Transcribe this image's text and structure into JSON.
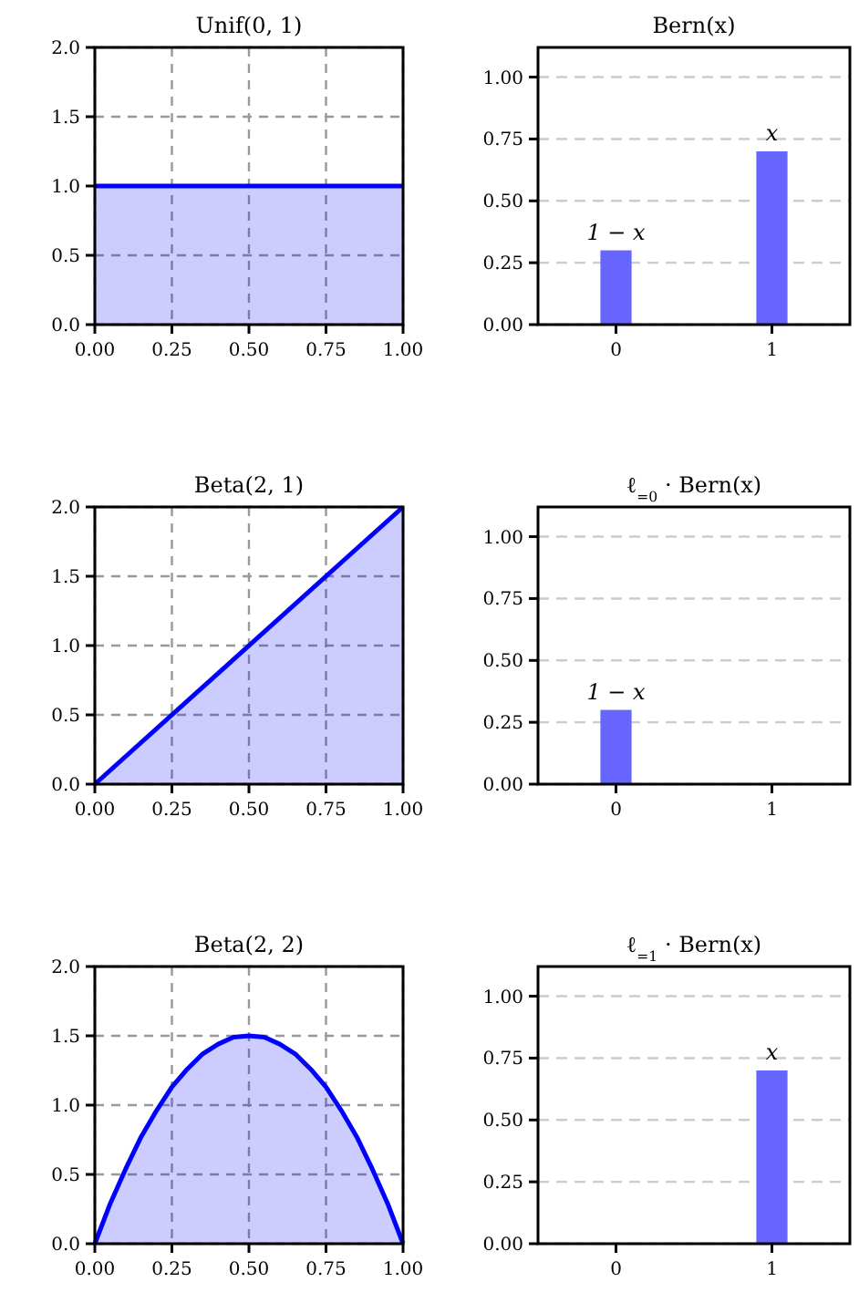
{
  "chart_data": [
    {
      "type": "area",
      "title": "Unif(0, 1)",
      "x": [
        0,
        1
      ],
      "series": [
        {
          "color": "#0000ff",
          "values": [
            1,
            1
          ]
        }
      ],
      "xlim": [
        0,
        1
      ],
      "ylim": [
        0,
        2
      ],
      "xticks": [
        {
          "value": 0,
          "label": "0.00"
        },
        {
          "value": 0.25,
          "label": "0.25"
        },
        {
          "value": 0.5,
          "label": "0.50"
        },
        {
          "value": 0.75,
          "label": "0.75"
        },
        {
          "value": 1,
          "label": "1.00"
        }
      ],
      "yticks": [
        {
          "value": 0,
          "label": "0.0"
        },
        {
          "value": 0.5,
          "label": "0.5"
        },
        {
          "value": 1,
          "label": "1.0"
        },
        {
          "value": 1.5,
          "label": "1.5"
        },
        {
          "value": 2,
          "label": "2.0"
        }
      ],
      "grid": true
    },
    {
      "type": "bar",
      "title": "Bern(x)",
      "categories": [
        "0",
        "1"
      ],
      "values": [
        0.3,
        0.7
      ],
      "annotations": [
        {
          "text": "1 − x",
          "x": "0",
          "y": 0.3
        },
        {
          "text": "x",
          "x": "1",
          "y": 0.7
        }
      ],
      "color": "#6666ff",
      "ylim": [
        0,
        1.12
      ],
      "yticks": [
        {
          "value": 0,
          "label": "0.00"
        },
        {
          "value": 0.25,
          "label": "0.25"
        },
        {
          "value": 0.5,
          "label": "0.50"
        },
        {
          "value": 0.75,
          "label": "0.75"
        },
        {
          "value": 1,
          "label": "1.00"
        }
      ],
      "grid": "y"
    },
    {
      "type": "area",
      "title": "Beta(2, 1)",
      "x": [
        0,
        1
      ],
      "series": [
        {
          "color": "#0000ff",
          "values": [
            0,
            2
          ]
        }
      ],
      "xlim": [
        0,
        1
      ],
      "ylim": [
        0,
        2
      ],
      "xticks": [
        {
          "value": 0,
          "label": "0.00"
        },
        {
          "value": 0.25,
          "label": "0.25"
        },
        {
          "value": 0.5,
          "label": "0.50"
        },
        {
          "value": 0.75,
          "label": "0.75"
        },
        {
          "value": 1,
          "label": "1.00"
        }
      ],
      "yticks": [
        {
          "value": 0,
          "label": "0.0"
        },
        {
          "value": 0.5,
          "label": "0.5"
        },
        {
          "value": 1,
          "label": "1.0"
        },
        {
          "value": 1.5,
          "label": "1.5"
        },
        {
          "value": 2,
          "label": "2.0"
        }
      ],
      "grid": true
    },
    {
      "type": "bar",
      "title": "ℓ$_{=0}$ · Bern(x)",
      "categories": [
        "0",
        "1"
      ],
      "values": [
        0.3,
        null
      ],
      "annotations": [
        {
          "text": "1 − x",
          "x": "0",
          "y": 0.3
        }
      ],
      "color": "#6666ff",
      "ylim": [
        0,
        1.12
      ],
      "yticks": [
        {
          "value": 0,
          "label": "0.00"
        },
        {
          "value": 0.25,
          "label": "0.25"
        },
        {
          "value": 0.5,
          "label": "0.50"
        },
        {
          "value": 0.75,
          "label": "0.75"
        },
        {
          "value": 1,
          "label": "1.00"
        }
      ],
      "grid": "y"
    },
    {
      "type": "area",
      "title": "Beta(2, 2)",
      "x": [
        0,
        0.05,
        0.1,
        0.15,
        0.2,
        0.25,
        0.3,
        0.35,
        0.4,
        0.45,
        0.5,
        0.55,
        0.6,
        0.65,
        0.7,
        0.75,
        0.8,
        0.85,
        0.9,
        0.95,
        1
      ],
      "series": [
        {
          "color": "#0000ff",
          "values": [
            0,
            0.29,
            0.54,
            0.77,
            0.96,
            1.13,
            1.26,
            1.37,
            1.44,
            1.49,
            1.5,
            1.49,
            1.44,
            1.37,
            1.26,
            1.13,
            0.96,
            0.77,
            0.54,
            0.29,
            0
          ]
        }
      ],
      "xlim": [
        0,
        1
      ],
      "ylim": [
        0,
        2
      ],
      "xticks": [
        {
          "value": 0,
          "label": "0.00"
        },
        {
          "value": 0.25,
          "label": "0.25"
        },
        {
          "value": 0.5,
          "label": "0.50"
        },
        {
          "value": 0.75,
          "label": "0.75"
        },
        {
          "value": 1,
          "label": "1.00"
        }
      ],
      "yticks": [
        {
          "value": 0,
          "label": "0.0"
        },
        {
          "value": 0.5,
          "label": "0.5"
        },
        {
          "value": 1,
          "label": "1.0"
        },
        {
          "value": 1.5,
          "label": "1.5"
        },
        {
          "value": 2,
          "label": "2.0"
        }
      ],
      "grid": true
    },
    {
      "type": "bar",
      "title": "ℓ$_{=1}$ · Bern(x)",
      "categories": [
        "0",
        "1"
      ],
      "values": [
        null,
        0.7
      ],
      "annotations": [
        {
          "text": "x",
          "x": "1",
          "y": 0.7
        }
      ],
      "color": "#6666ff",
      "ylim": [
        0,
        1.12
      ],
      "yticks": [
        {
          "value": 0,
          "label": "0.00"
        },
        {
          "value": 0.25,
          "label": "0.25"
        },
        {
          "value": 0.5,
          "label": "0.50"
        },
        {
          "value": 0.75,
          "label": "0.75"
        },
        {
          "value": 1,
          "label": "1.00"
        }
      ],
      "grid": "y"
    }
  ]
}
